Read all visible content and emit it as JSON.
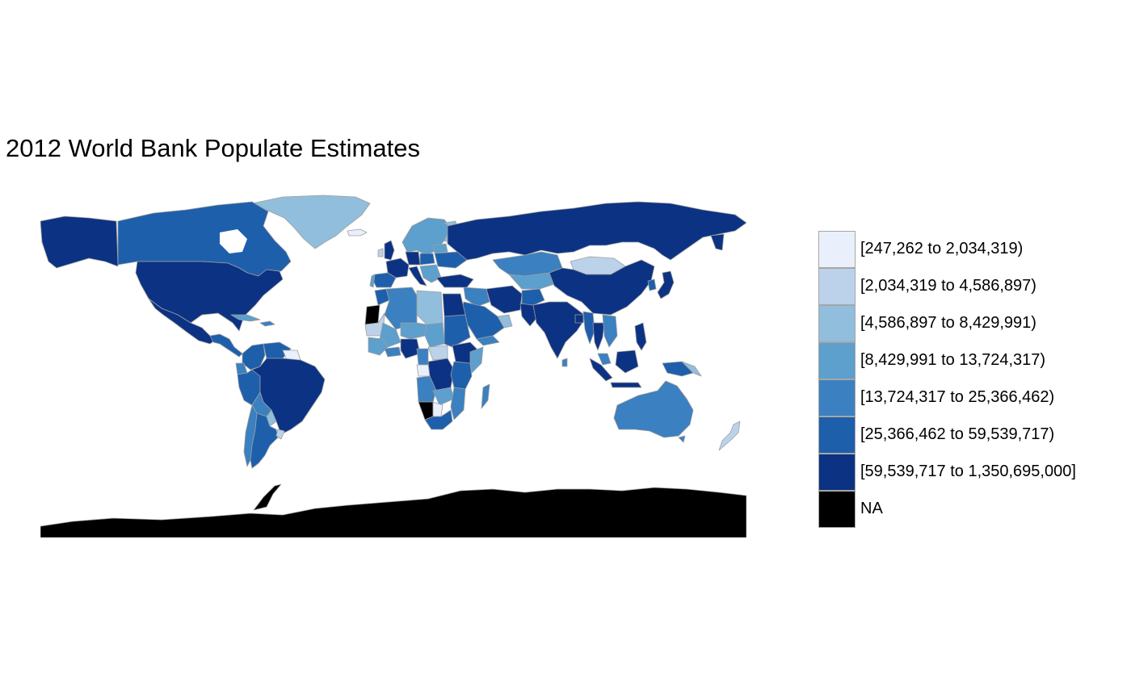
{
  "title": "2012 World Bank Populate Estimates",
  "colors": {
    "c1": "#eaf0fb",
    "c2": "#bcd2ea",
    "c3": "#91bedc",
    "c4": "#5d9fcd",
    "c5": "#3b80c0",
    "c6": "#1e5fac",
    "c7": "#0c3283",
    "na": "#000000",
    "border": "#9e9e9e"
  },
  "legend": {
    "items": [
      {
        "label": "[247,262 to 2,034,319)",
        "color": "#eaf0fb"
      },
      {
        "label": "[2,034,319 to 4,586,897)",
        "color": "#bcd2ea"
      },
      {
        "label": "[4,586,897 to 8,429,991)",
        "color": "#91bedc"
      },
      {
        "label": "[8,429,991 to 13,724,317)",
        "color": "#5d9fcd"
      },
      {
        "label": "[13,724,317 to 25,366,462)",
        "color": "#3b80c0"
      },
      {
        "label": "[25,366,462 to 59,539,717)",
        "color": "#1e5fac"
      },
      {
        "label": "[59,539,717 to 1,350,695,000]",
        "color": "#0c3283"
      },
      {
        "label": "NA",
        "color": "#000000"
      }
    ]
  }
}
